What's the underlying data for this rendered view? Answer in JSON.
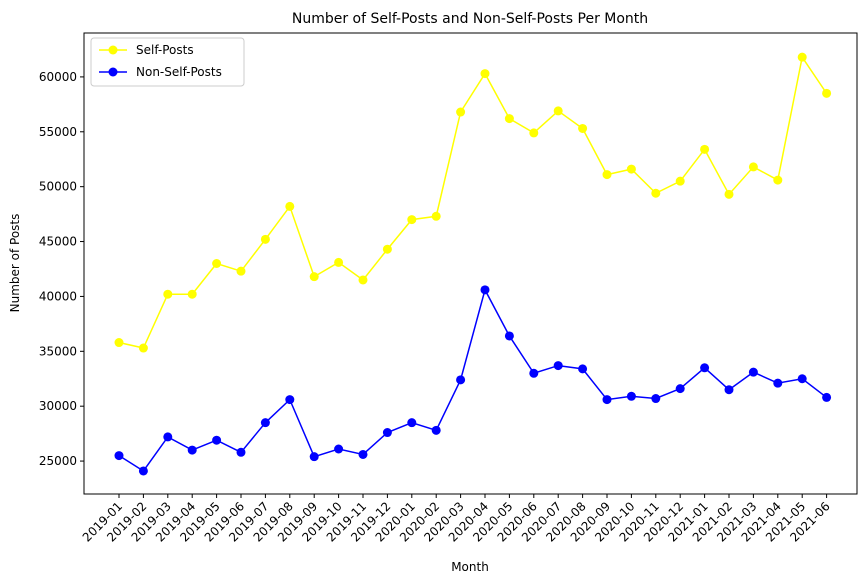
{
  "chart_data": {
    "type": "line",
    "title": "Number of Self-Posts and Non-Self-Posts Per Month",
    "xlabel": "Month",
    "ylabel": "Number of Posts",
    "categories": [
      "2019-01",
      "2019-02",
      "2019-03",
      "2019-04",
      "2019-05",
      "2019-06",
      "2019-07",
      "2019-08",
      "2019-09",
      "2019-10",
      "2019-11",
      "2019-12",
      "2020-01",
      "2020-02",
      "2020-03",
      "2020-04",
      "2020-05",
      "2020-06",
      "2020-07",
      "2020-08",
      "2020-09",
      "2020-10",
      "2020-11",
      "2020-12",
      "2021-01",
      "2021-02",
      "2021-03",
      "2021-04",
      "2021-05",
      "2021-06"
    ],
    "yticks": [
      25000,
      30000,
      35000,
      40000,
      45000,
      50000,
      55000,
      60000
    ],
    "ylim": [
      22000,
      64000
    ],
    "grid": false,
    "legend_position": "top-left",
    "series": [
      {
        "name": "Self-Posts",
        "color": "#ffff00",
        "values": [
          35800,
          35300,
          40200,
          40200,
          43000,
          42300,
          45200,
          48200,
          41800,
          43100,
          41500,
          44300,
          47000,
          47300,
          56800,
          60300,
          56200,
          54900,
          56900,
          55300,
          51100,
          51600,
          49400,
          50500,
          53400,
          49300,
          51800,
          50600,
          61800,
          58500
        ]
      },
      {
        "name": "Non-Self-Posts",
        "color": "#0000ff",
        "values": [
          25500,
          24100,
          27200,
          26000,
          26900,
          25800,
          28500,
          30600,
          25400,
          26100,
          25600,
          27600,
          28500,
          27800,
          32400,
          40600,
          36400,
          33000,
          33700,
          33400,
          30600,
          30900,
          30700,
          31600,
          33500,
          31500,
          33100,
          32100,
          32500,
          30800
        ]
      }
    ]
  }
}
